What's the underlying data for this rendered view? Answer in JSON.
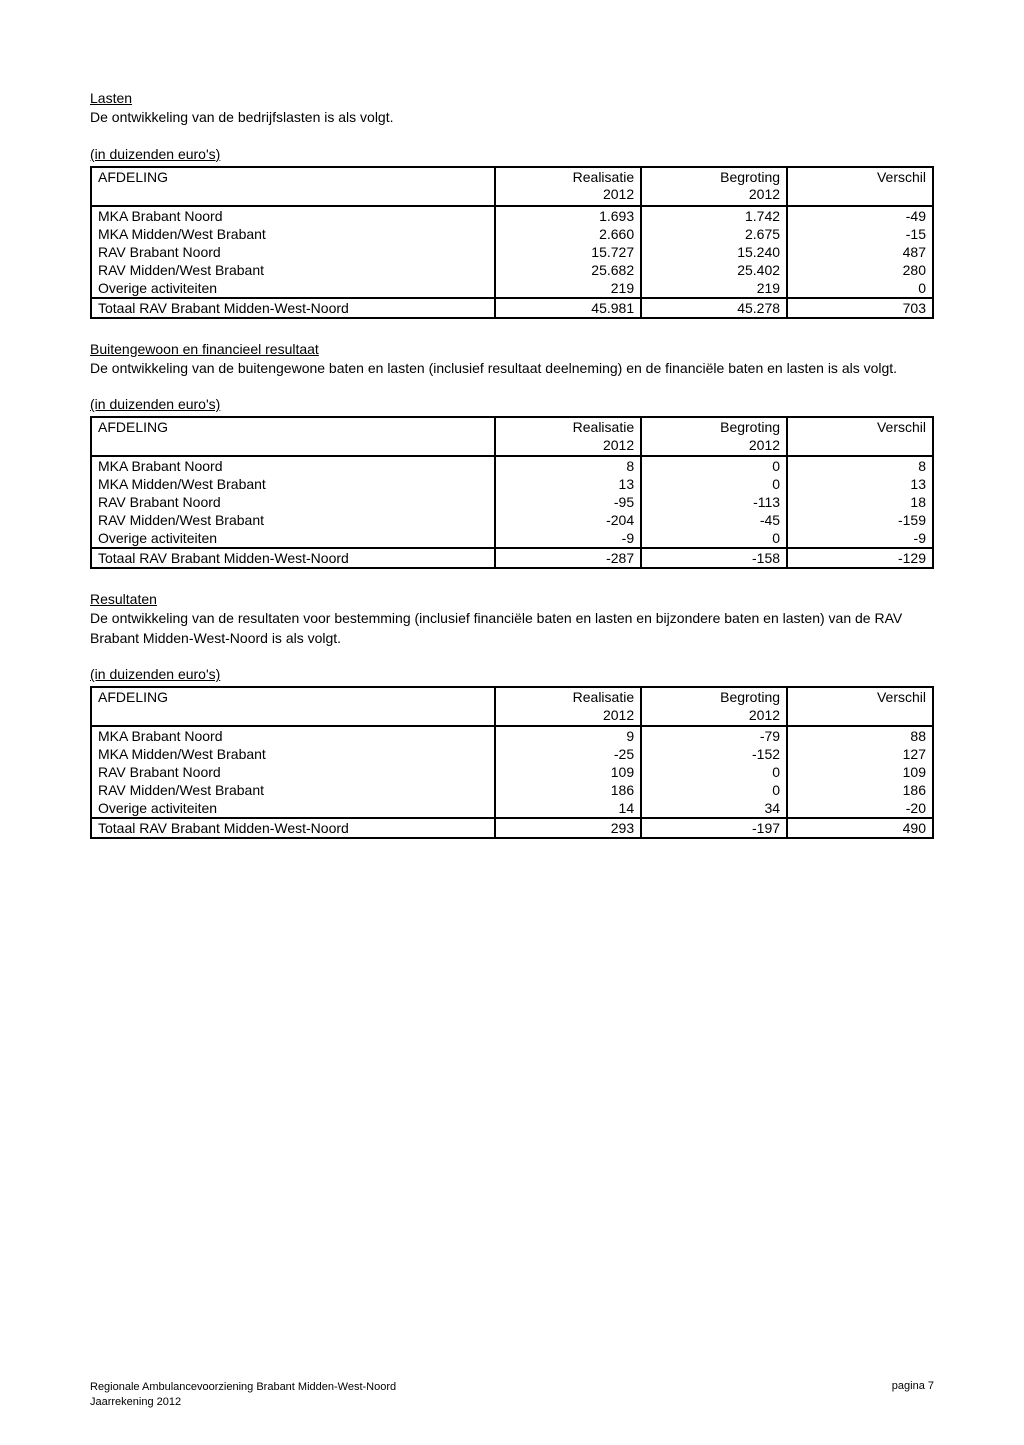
{
  "sections": {
    "lasten": {
      "title": "Lasten",
      "desc": "De ontwikkeling van de bedrijfslasten is als volgt.",
      "caption": "(in duizenden euro's)"
    },
    "buitengewoon": {
      "title": "Buitengewoon en financieel resultaat",
      "desc": "De ontwikkeling van de buitengewone baten en lasten (inclusief resultaat deelneming) en de financiële baten en lasten is als volgt.",
      "caption": "(in duizenden euro's)"
    },
    "resultaten": {
      "title": "Resultaten",
      "desc": "De ontwikkeling van de resultaten voor bestemming (inclusief financiële baten en lasten en bijzondere baten en lasten) van de RAV Brabant Midden-West-Noord is als volgt.",
      "caption": "(in duizenden euro's)"
    }
  },
  "headers": {
    "afdeling": "AFDELING",
    "realisatie": "Realisatie",
    "begroting": "Begroting",
    "verschil": "Verschil",
    "year": "2012"
  },
  "row_labels": {
    "mka_noord": "MKA Brabant Noord",
    "mka_mw": "MKA Midden/West Brabant",
    "rav_noord": "RAV Brabant Noord",
    "rav_mw": "RAV Midden/West Brabant",
    "overige": "Overige activiteiten",
    "totaal": "Totaal RAV Brabant Midden-West-Noord"
  },
  "tables": {
    "lasten": {
      "rows": [
        {
          "k": "mka_noord",
          "r": "1.693",
          "b": "1.742",
          "v": "-49"
        },
        {
          "k": "mka_mw",
          "r": "2.660",
          "b": "2.675",
          "v": "-15"
        },
        {
          "k": "rav_noord",
          "r": "15.727",
          "b": "15.240",
          "v": "487"
        },
        {
          "k": "rav_mw",
          "r": "25.682",
          "b": "25.402",
          "v": "280"
        },
        {
          "k": "overige",
          "r": "219",
          "b": "219",
          "v": "0"
        }
      ],
      "total": {
        "r": "45.981",
        "b": "45.278",
        "v": "703"
      }
    },
    "buitengewoon": {
      "rows": [
        {
          "k": "mka_noord",
          "r": "8",
          "b": "0",
          "v": "8"
        },
        {
          "k": "mka_mw",
          "r": "13",
          "b": "0",
          "v": "13"
        },
        {
          "k": "rav_noord",
          "r": "-95",
          "b": "-113",
          "v": "18"
        },
        {
          "k": "rav_mw",
          "r": "-204",
          "b": "-45",
          "v": "-159"
        },
        {
          "k": "overige",
          "r": "-9",
          "b": "0",
          "v": "-9"
        }
      ],
      "total": {
        "r": "-287",
        "b": "-158",
        "v": "-129"
      }
    },
    "resultaten": {
      "rows": [
        {
          "k": "mka_noord",
          "r": "9",
          "b": "-79",
          "v": "88"
        },
        {
          "k": "mka_mw",
          "r": "-25",
          "b": "-152",
          "v": "127"
        },
        {
          "k": "rav_noord",
          "r": "109",
          "b": "0",
          "v": "109"
        },
        {
          "k": "rav_mw",
          "r": "186",
          "b": "0",
          "v": "186"
        },
        {
          "k": "overige",
          "r": "14",
          "b": "34",
          "v": "-20"
        }
      ],
      "total": {
        "r": "293",
        "b": "-197",
        "v": "490"
      }
    }
  },
  "footer": {
    "org": "Regionale Ambulancevoorziening Brabant Midden-West-Noord",
    "doc": "Jaarrekening 2012",
    "page": "pagina 7"
  }
}
